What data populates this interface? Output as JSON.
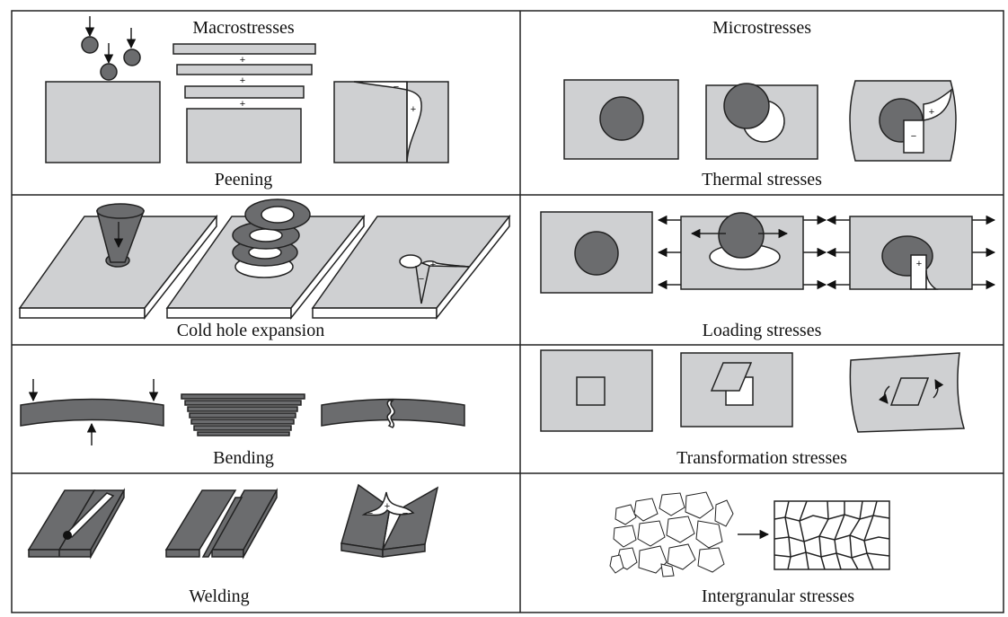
{
  "labels": {
    "macro": "Macrostresses",
    "micro": "Microstresses",
    "peening": "Peening",
    "thermal": "Thermal stresses",
    "cold_hole": "Cold hole expansion",
    "loading": "Loading stresses",
    "bending": "Bending",
    "transformation": "Transformation stresses",
    "welding": "Welding",
    "intergranular": "Intergranular stresses"
  },
  "signs": {
    "plus": "+",
    "minus": "−"
  },
  "colors": {
    "light_gray": "#cfd0d2",
    "dark_gray": "#6b6c6e",
    "outline": "#222222"
  }
}
